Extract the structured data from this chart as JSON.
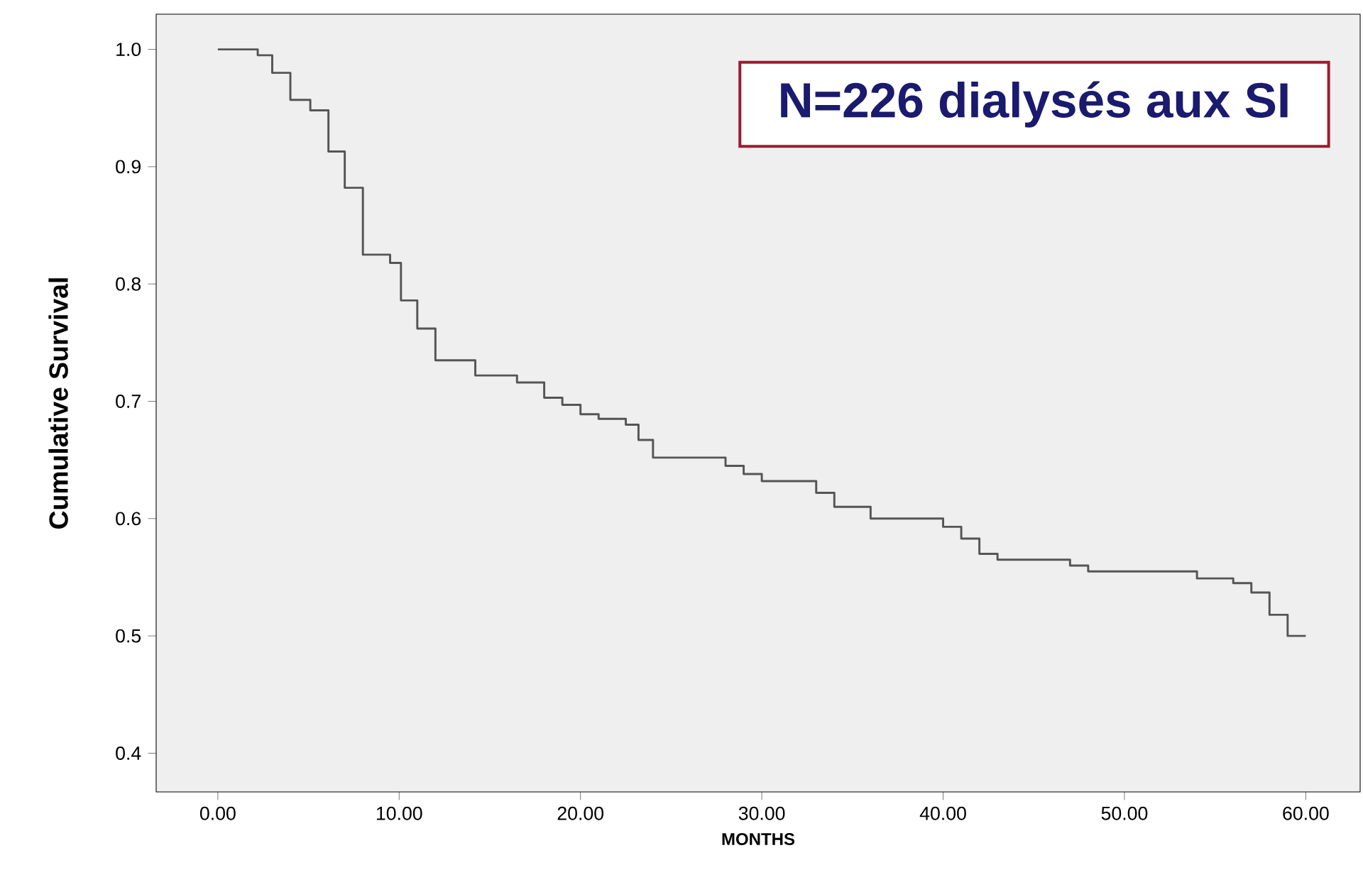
{
  "chart_data": {
    "type": "step",
    "xlabel": "MONTHS",
    "ylabel": "Cumulative Survival",
    "annotations": [
      "N=226 dialysés aux SI"
    ],
    "x": [
      0,
      2.2,
      3,
      4,
      5.1,
      6.1,
      7,
      8,
      9.5,
      10.1,
      11,
      12,
      14.2,
      16.5,
      18,
      19,
      20,
      21,
      22.5,
      23.2,
      24,
      28,
      29,
      30,
      33,
      34,
      36,
      40,
      41,
      42,
      43,
      47,
      48,
      54,
      56,
      57,
      58,
      59,
      60
    ],
    "values": [
      1.0,
      0.995,
      0.98,
      0.957,
      0.948,
      0.913,
      0.882,
      0.825,
      0.818,
      0.786,
      0.762,
      0.735,
      0.722,
      0.716,
      0.703,
      0.697,
      0.689,
      0.685,
      0.68,
      0.667,
      0.652,
      0.645,
      0.638,
      0.632,
      0.622,
      0.61,
      0.6,
      0.593,
      0.583,
      0.57,
      0.565,
      0.56,
      0.555,
      0.549,
      0.545,
      0.537,
      0.518,
      0.5,
      0.5
    ],
    "color": "#555555",
    "xlim": [
      -3.4,
      63
    ],
    "ylim": [
      0.367,
      1.03
    ],
    "xticks": [
      {
        "value": 0,
        "label": "0.00"
      },
      {
        "value": 10,
        "label": "10.00"
      },
      {
        "value": 20,
        "label": "20.00"
      },
      {
        "value": 30,
        "label": "30.00"
      },
      {
        "value": 40,
        "label": "40.00"
      },
      {
        "value": 50,
        "label": "50.00"
      },
      {
        "value": 60,
        "label": "60.00"
      }
    ],
    "yticks": [
      {
        "value": 0.4,
        "label": "0.4"
      },
      {
        "value": 0.5,
        "label": "0.5"
      },
      {
        "value": 0.6,
        "label": "0.6"
      },
      {
        "value": 0.7,
        "label": "0.7"
      },
      {
        "value": 0.8,
        "label": "0.8"
      },
      {
        "value": 0.9,
        "label": "0.9"
      },
      {
        "value": 1.0,
        "label": "1.0"
      }
    ],
    "grid": false
  }
}
